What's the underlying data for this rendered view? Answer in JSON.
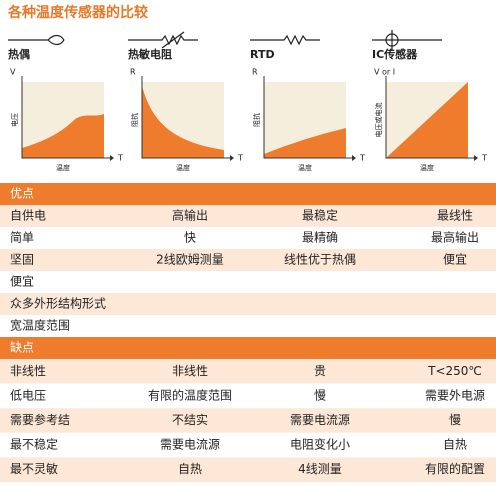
{
  "title": "各种温度传感器的比较",
  "sensors": [
    {
      "name": "热偶",
      "y_axis": "V",
      "x_axis": "T",
      "y_label": "电压",
      "x_label": "温度"
    },
    {
      "name": "热敏电阻",
      "y_axis": "R",
      "x_axis": "T",
      "y_label": "阻抗",
      "x_label": "温度"
    },
    {
      "name": "RTD",
      "y_axis": "R",
      "x_axis": "T",
      "y_label": "阻抗",
      "x_label": "温度"
    },
    {
      "name": "IC传感器",
      "y_axis": "V or I",
      "x_axis": "T",
      "y_label": "电压或电流",
      "x_label": "温度"
    }
  ],
  "table": {
    "advantages": {
      "heading": "优点",
      "rows": [
        [
          "自供电",
          "高输出",
          "最稳定",
          "最线性"
        ],
        [
          "简单",
          "快",
          "最精确",
          "最高输出"
        ],
        [
          "坚固",
          "2线欧姆测量",
          "线性优于热偶",
          "便宜"
        ],
        [
          "便宜"
        ],
        [
          "众多外形结构形式"
        ],
        [
          "宽温度范围"
        ]
      ]
    },
    "disadvantages": {
      "heading": "缺点",
      "rows": [
        [
          "非线性",
          "非线性",
          "贵",
          "T<250℃"
        ],
        [
          "低电压",
          "有限的温度范围",
          "慢",
          "需要外电源"
        ],
        [
          "需要参考结",
          "不结实",
          "需要电流源",
          "慢"
        ],
        [
          "最不稳定",
          "需要电流源",
          "电阻变化小",
          "自热"
        ],
        [
          "最不灵敏",
          "自热",
          "4线测量",
          "有限的配置"
        ]
      ]
    }
  }
}
